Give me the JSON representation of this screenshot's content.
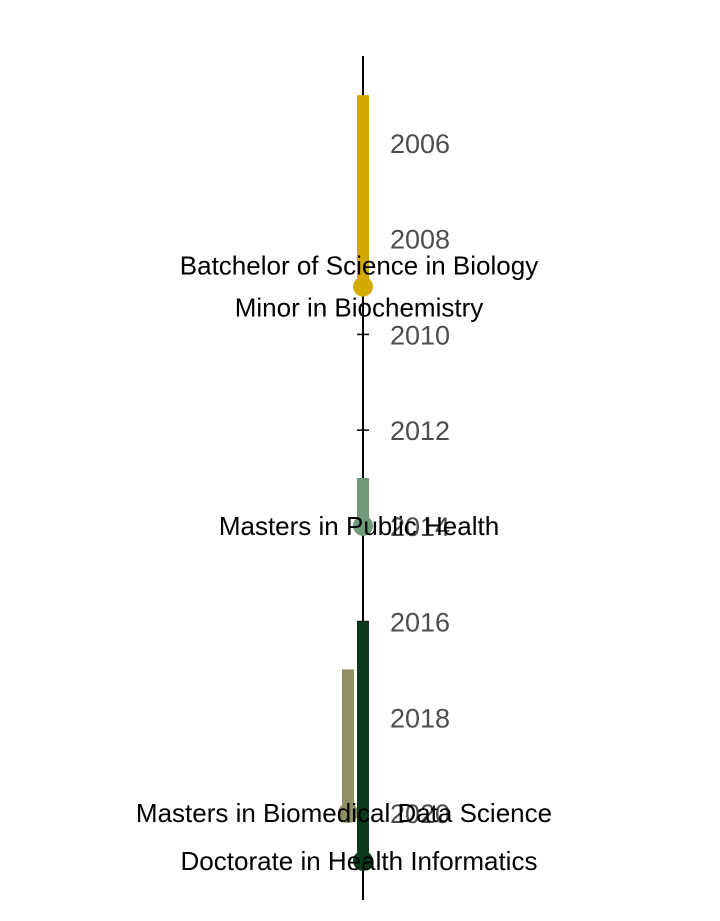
{
  "chart_data": {
    "type": "timeline",
    "title": "",
    "xlabel": "",
    "ylabel": "",
    "ylim": [
      2004.2,
      2022.8
    ],
    "ticks": [
      2006,
      2008,
      2010,
      2012,
      2014,
      2016,
      2018,
      2020
    ],
    "grid": false,
    "legend": "none",
    "series": [
      {
        "label": [
          "Batchelor of Science in Biology",
          "Minor in Biochemistry"
        ],
        "start": 2005.0,
        "end": 2009.0,
        "color": "#d4aa00",
        "lane": 0
      },
      {
        "label": [
          "Masters in Public Health"
        ],
        "start": 2013.0,
        "end": 2014.0,
        "color": "#6e9a7a",
        "lane": 0
      },
      {
        "label": [
          "Masters in Biomedical Data Science"
        ],
        "start": 2017.0,
        "end": 2020.0,
        "color": "#8f8f62",
        "lane": -1
      },
      {
        "label": [
          "Doctorate in Health Informatics"
        ],
        "start": 2016.0,
        "end": 2021.0,
        "color": "#0b3a1c",
        "lane": 0
      }
    ]
  }
}
